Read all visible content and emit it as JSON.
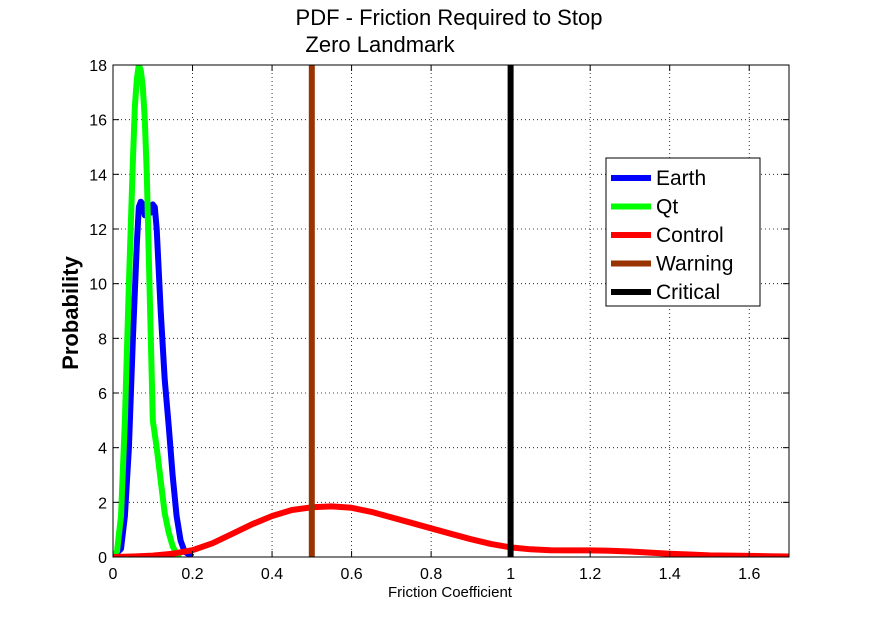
{
  "chart_data": {
    "type": "line",
    "title": "PDF - Friction Required to Stop",
    "subtitle": "Zero Landmark",
    "xlabel": "Friction Coefficient",
    "ylabel": "Probability",
    "xlim": [
      0,
      1.7
    ],
    "ylim": [
      0,
      18
    ],
    "xticks": [
      0,
      0.2,
      0.4,
      0.6,
      0.8,
      1,
      1.2,
      1.4,
      1.6
    ],
    "xtick_labels": [
      "0",
      "0.2",
      "0.4",
      "0.6",
      "0.8",
      "1",
      "1.2",
      "1.4",
      "1.6"
    ],
    "yticks": [
      0,
      2,
      4,
      6,
      8,
      10,
      12,
      14,
      16,
      18
    ],
    "ytick_labels": [
      "0",
      "2",
      "4",
      "6",
      "8",
      "10",
      "12",
      "14",
      "16",
      "18"
    ],
    "grid": true,
    "legend_position": "upper-right",
    "series": [
      {
        "name": "Earth",
        "color": "#0000ff",
        "x": [
          0.0,
          0.02,
          0.03,
          0.04,
          0.05,
          0.06,
          0.065,
          0.07,
          0.075,
          0.08,
          0.085,
          0.09,
          0.095,
          0.1,
          0.105,
          0.11,
          0.115,
          0.12,
          0.13,
          0.14,
          0.15,
          0.16,
          0.17,
          0.18,
          0.2
        ],
        "y": [
          0.0,
          0.3,
          1.5,
          4.0,
          8.0,
          11.5,
          12.8,
          13.0,
          12.9,
          12.5,
          12.9,
          12.7,
          12.6,
          12.9,
          12.8,
          12.0,
          10.5,
          9.0,
          6.5,
          4.8,
          3.0,
          1.5,
          0.6,
          0.2,
          0.0
        ]
      },
      {
        "name": "Qt",
        "color": "#00ff00",
        "x": [
          0.0,
          0.01,
          0.02,
          0.03,
          0.04,
          0.05,
          0.055,
          0.06,
          0.065,
          0.07,
          0.075,
          0.08,
          0.085,
          0.09,
          0.095,
          0.1,
          0.11,
          0.12,
          0.13,
          0.14,
          0.15,
          0.16,
          0.17
        ],
        "y": [
          0.0,
          0.2,
          1.5,
          5.0,
          10.0,
          14.5,
          16.5,
          17.5,
          18.0,
          17.8,
          17.2,
          16.0,
          14.0,
          11.0,
          8.0,
          5.0,
          4.0,
          2.8,
          1.6,
          0.9,
          0.4,
          0.1,
          0.0
        ]
      },
      {
        "name": "Control",
        "color": "#ff0000",
        "x": [
          0.0,
          0.05,
          0.1,
          0.15,
          0.2,
          0.25,
          0.3,
          0.35,
          0.4,
          0.45,
          0.5,
          0.55,
          0.6,
          0.65,
          0.7,
          0.75,
          0.8,
          0.85,
          0.9,
          0.95,
          1.0,
          1.05,
          1.1,
          1.15,
          1.2,
          1.25,
          1.3,
          1.35,
          1.4,
          1.45,
          1.5,
          1.55,
          1.6,
          1.65,
          1.7
        ],
        "y": [
          0.0,
          0.02,
          0.05,
          0.12,
          0.25,
          0.5,
          0.85,
          1.2,
          1.5,
          1.72,
          1.82,
          1.85,
          1.8,
          1.65,
          1.45,
          1.25,
          1.05,
          0.85,
          0.65,
          0.48,
          0.35,
          0.28,
          0.25,
          0.24,
          0.24,
          0.23,
          0.2,
          0.16,
          0.12,
          0.09,
          0.06,
          0.05,
          0.04,
          0.03,
          0.02
        ]
      },
      {
        "name": "Warning",
        "color": "#993300",
        "x": [
          0.5,
          0.5
        ],
        "y": [
          0,
          18
        ]
      },
      {
        "name": "Critical",
        "color": "#000000",
        "x": [
          1.0,
          1.0
        ],
        "y": [
          0,
          18
        ]
      }
    ]
  }
}
